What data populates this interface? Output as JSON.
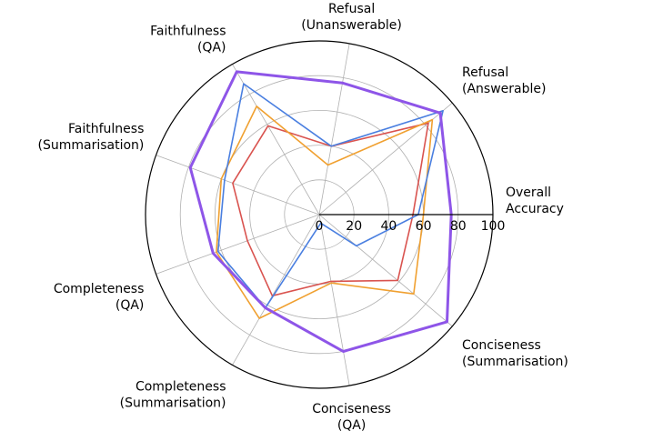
{
  "chart_data": {
    "type": "radar",
    "r_ticks": [
      "0",
      "20",
      "40",
      "60",
      "80",
      "100"
    ],
    "r_range": [
      0,
      100
    ],
    "axes": [
      {
        "id": "overall",
        "lines": [
          "Overall",
          "Accuracy"
        ]
      },
      {
        "id": "refusal-answerable",
        "lines": [
          "Refusal",
          "(Answerable)"
        ]
      },
      {
        "id": "refusal-unanswerable",
        "lines": [
          "Refusal",
          "(Unanswerable)"
        ]
      },
      {
        "id": "faithfulness-qa",
        "lines": [
          "Faithfulness",
          "(QA)"
        ]
      },
      {
        "id": "faithfulness-summarisation",
        "lines": [
          "Faithfulness",
          "(Summarisation)"
        ]
      },
      {
        "id": "completeness-qa",
        "lines": [
          "Completeness",
          "(QA)"
        ]
      },
      {
        "id": "completeness-summarisation",
        "lines": [
          "Completeness",
          "(Summarisation)"
        ]
      },
      {
        "id": "conciseness-qa",
        "lines": [
          "Conciseness",
          "(QA)"
        ]
      },
      {
        "id": "conciseness-summarisation",
        "lines": [
          "Conciseness",
          "(Summarisation)"
        ]
      }
    ],
    "series": [
      {
        "color": "#d9534f",
        "values": [
          54,
          82,
          40,
          59,
          53,
          44,
          54,
          39,
          59
        ]
      },
      {
        "color": "#f0a030",
        "values": [
          60,
          85,
          29,
          72,
          60,
          63,
          69,
          40,
          71
        ]
      },
      {
        "color": "#4a7fe0",
        "values": [
          57,
          93,
          40,
          87,
          58,
          62,
          62,
          5,
          28
        ]
      },
      {
        "color": "#8e55e8",
        "values": [
          76,
          91,
          77,
          95,
          79,
          65,
          62,
          80,
          96
        ]
      }
    ]
  }
}
